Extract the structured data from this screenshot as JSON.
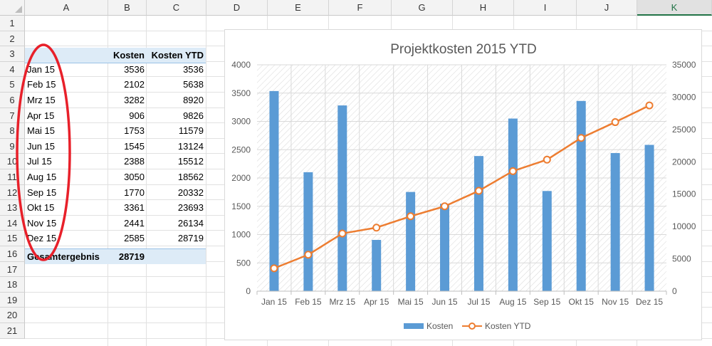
{
  "sheet": {
    "columns": [
      "A",
      "B",
      "C",
      "D",
      "E",
      "F",
      "G",
      "H",
      "I",
      "J",
      "K"
    ],
    "selected_column": "K",
    "rows": [
      "1",
      "2",
      "3",
      "4",
      "5",
      "6",
      "7",
      "8",
      "9",
      "10",
      "11",
      "12",
      "13",
      "14",
      "15",
      "16",
      "17",
      "18",
      "19",
      "20",
      "21"
    ]
  },
  "pivot": {
    "header_kosten": "Kosten",
    "header_kosten_ytd": "Kosten YTD",
    "rows": [
      {
        "month": "Jan 15",
        "kosten": "3536",
        "ytd": "3536"
      },
      {
        "month": "Feb 15",
        "kosten": "2102",
        "ytd": "5638"
      },
      {
        "month": "Mrz 15",
        "kosten": "3282",
        "ytd": "8920"
      },
      {
        "month": "Apr 15",
        "kosten": "906",
        "ytd": "9826"
      },
      {
        "month": "Mai 15",
        "kosten": "1753",
        "ytd": "11579"
      },
      {
        "month": "Jun 15",
        "kosten": "1545",
        "ytd": "13124"
      },
      {
        "month": "Jul 15",
        "kosten": "2388",
        "ytd": "15512"
      },
      {
        "month": "Aug 15",
        "kosten": "3050",
        "ytd": "18562"
      },
      {
        "month": "Sep 15",
        "kosten": "1770",
        "ytd": "20332"
      },
      {
        "month": "Okt 15",
        "kosten": "3361",
        "ytd": "23693"
      },
      {
        "month": "Nov 15",
        "kosten": "2441",
        "ytd": "26134"
      },
      {
        "month": "Dez 15",
        "kosten": "2585",
        "ytd": "28719"
      }
    ],
    "total_label": "Gesamtergebnis",
    "total_value": "28719"
  },
  "chart_data": {
    "type": "bar",
    "title": "Projektkosten 2015 YTD",
    "categories": [
      "Jan 15",
      "Feb 15",
      "Mrz 15",
      "Apr 15",
      "Mai 15",
      "Jun 15",
      "Jul 15",
      "Aug 15",
      "Sep 15",
      "Okt 15",
      "Nov 15",
      "Dez 15"
    ],
    "series": [
      {
        "name": "Kosten",
        "type": "bar",
        "axis": "left",
        "color": "#5b9bd5",
        "values": [
          3536,
          2102,
          3282,
          906,
          1753,
          1545,
          2388,
          3050,
          1770,
          3361,
          2441,
          2585
        ]
      },
      {
        "name": "Kosten YTD",
        "type": "line",
        "axis": "right",
        "color": "#ed7d31",
        "values": [
          3536,
          5638,
          8920,
          9826,
          11579,
          13124,
          15512,
          18562,
          20332,
          23693,
          26134,
          28719
        ]
      }
    ],
    "ylim_left": [
      0,
      4000
    ],
    "yticks_left": [
      "0",
      "500",
      "1000",
      "1500",
      "2000",
      "2500",
      "3000",
      "3500",
      "4000"
    ],
    "ylim_right": [
      0,
      35000
    ],
    "yticks_right": [
      "0",
      "5000",
      "10000",
      "15000",
      "20000",
      "25000",
      "30000",
      "35000"
    ],
    "gridlines": true,
    "plot_pattern": "diagonal-hatch",
    "legend_position": "bottom",
    "annotation_color": "#e8202a"
  }
}
